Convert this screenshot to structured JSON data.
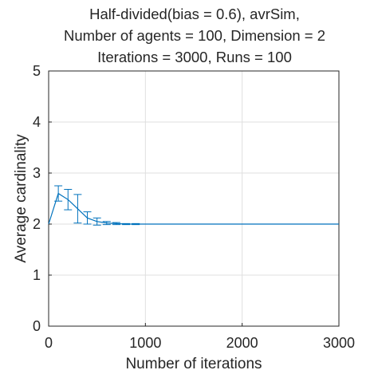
{
  "chart_data": {
    "type": "line",
    "title_lines": [
      "Half-divided(bias = 0.6), avrSim,",
      "Number of agents = 100, Dimension = 2",
      "Iterations = 3000, Runs = 100"
    ],
    "xlabel": "Number of iterations",
    "ylabel": "Average cardinality",
    "xlim": [
      0,
      3000
    ],
    "ylim": [
      0,
      5
    ],
    "xticks": [
      0,
      1000,
      2000,
      3000
    ],
    "xtick_labels": [
      "0",
      "1000",
      "2000",
      "3000"
    ],
    "yticks": [
      0,
      1,
      2,
      3,
      4,
      5
    ],
    "ytick_labels": [
      "0",
      "1",
      "2",
      "3",
      "4",
      "5"
    ],
    "grid": true,
    "series": [
      {
        "color": "#0072bd",
        "x": [
          0,
          100,
          200,
          300,
          400,
          500,
          600,
          700,
          800,
          900,
          1000,
          1500,
          2000,
          2500,
          3000
        ],
        "y": [
          2.0,
          2.6,
          2.48,
          2.3,
          2.12,
          2.05,
          2.02,
          2.01,
          2.0,
          2.0,
          2.0,
          2.0,
          2.0,
          2.0,
          2.0
        ],
        "err": [
          0,
          0.15,
          0.2,
          0.28,
          0.12,
          0.07,
          0.03,
          0.02,
          0.01,
          0.01,
          0,
          0,
          0,
          0,
          0
        ]
      }
    ]
  }
}
